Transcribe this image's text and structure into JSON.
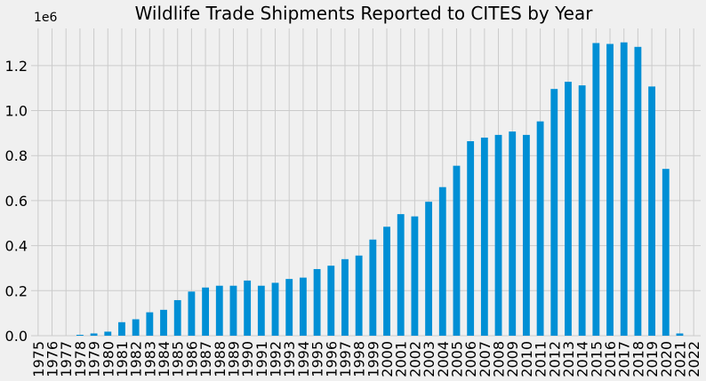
{
  "chart_data": {
    "type": "bar",
    "title": "Wildlife Trade Shipments Reported to CITES by Year",
    "xlabel": "",
    "ylabel": "",
    "offset_label": "1e6",
    "categories": [
      "1975",
      "1976",
      "1977",
      "1978",
      "1979",
      "1980",
      "1981",
      "1982",
      "1983",
      "1984",
      "1985",
      "1986",
      "1987",
      "1988",
      "1989",
      "1990",
      "1991",
      "1992",
      "1993",
      "1994",
      "1995",
      "1996",
      "1997",
      "1998",
      "1999",
      "2000",
      "2001",
      "2002",
      "2003",
      "2004",
      "2005",
      "2006",
      "2007",
      "2008",
      "2009",
      "2010",
      "2011",
      "2012",
      "2013",
      "2014",
      "2015",
      "2016",
      "2017",
      "2018",
      "2019",
      "2020",
      "2021",
      "2022"
    ],
    "values": [
      0,
      0,
      0,
      0.004,
      0.01,
      0.018,
      0.06,
      0.073,
      0.104,
      0.115,
      0.158,
      0.196,
      0.214,
      0.222,
      0.222,
      0.245,
      0.222,
      0.235,
      0.252,
      0.258,
      0.296,
      0.311,
      0.34,
      0.356,
      0.427,
      0.484,
      0.54,
      0.53,
      0.595,
      0.66,
      0.755,
      0.864,
      0.88,
      0.892,
      0.907,
      0.892,
      0.952,
      1.096,
      1.128,
      1.112,
      1.3,
      1.296,
      1.303,
      1.283,
      1.107,
      0.741,
      0.01,
      0
    ],
    "yticks": [
      0,
      0.2,
      0.4,
      0.6,
      0.8,
      1.0,
      1.2
    ],
    "ytick_labels": [
      "0.0",
      "0.2",
      "0.4",
      "0.6",
      "0.8",
      "1.0",
      "1.2"
    ],
    "ylim": [
      0,
      1.365
    ],
    "grid": true,
    "colors": {
      "bar": "#008fd5",
      "background": "#f0f0f0",
      "grid": "#cbcbcb"
    }
  }
}
